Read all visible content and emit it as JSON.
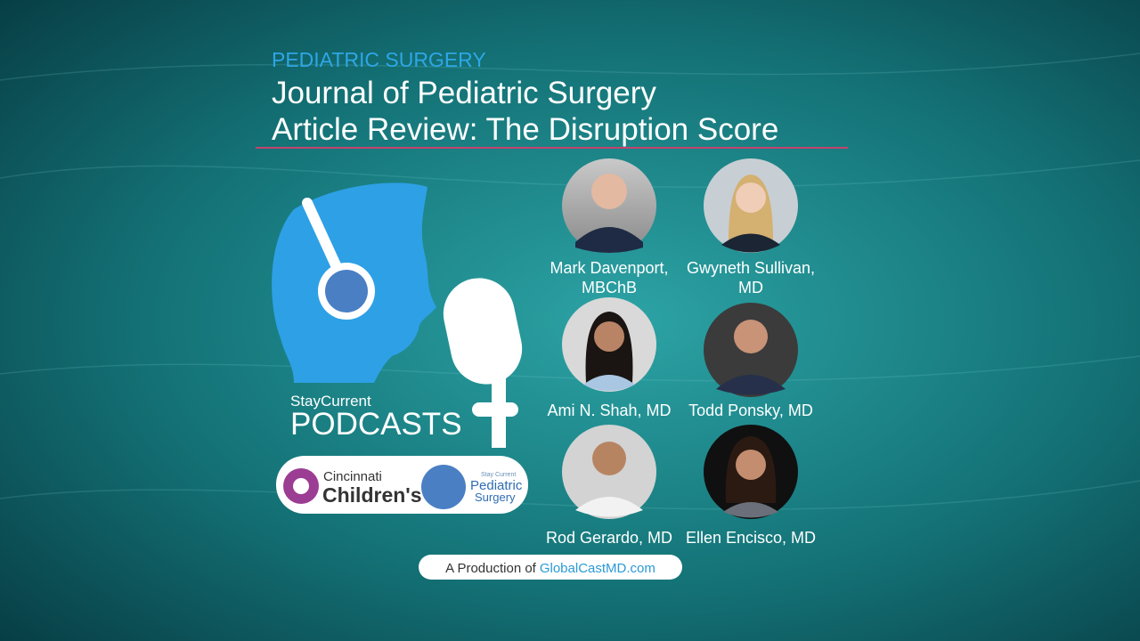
{
  "header": {
    "category": "PEDIATRIC SURGERY",
    "title": [
      "Journal of Pediatric Surgery",
      "Article Review: The Disruption Score"
    ]
  },
  "brand": {
    "series_small": "StayCurrent",
    "series_large": "PODCASTS"
  },
  "logo": {
    "org_top": "Cincinnati",
    "org_bottom": "Children's",
    "sub_small": "Stay Current",
    "sub_top": "Pediatric",
    "sub_bottom": "Surgery"
  },
  "speakers": [
    {
      "name": [
        "Mark Davenport,",
        "MBChB"
      ]
    },
    {
      "name": [
        "Gwyneth Sullivan,",
        "MD"
      ]
    },
    {
      "name": [
        "Ami N. Shah, MD"
      ]
    },
    {
      "name": [
        "Todd Ponsky, MD"
      ]
    },
    {
      "name": [
        "Rod Gerardo, MD"
      ]
    },
    {
      "name": [
        "Ellen Encisco, MD"
      ]
    }
  ],
  "footer": {
    "prefix": "A Production of",
    "site": "GlobalCastMD.com"
  }
}
